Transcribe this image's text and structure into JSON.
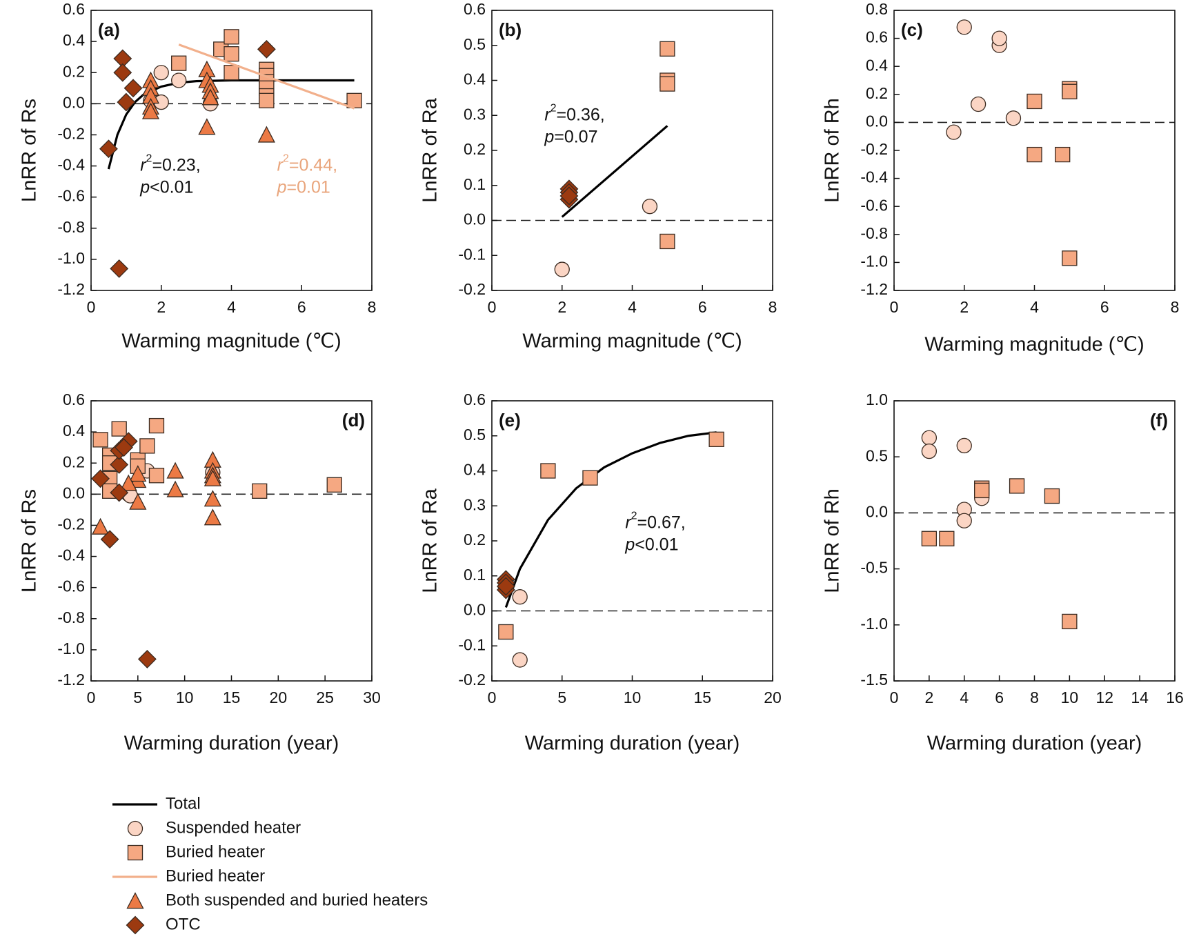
{
  "chart_data": [
    {
      "type": "scatter",
      "label": "(a)",
      "xlabel": "Warming magnitude (℃)",
      "ylabel": "LnRR of Rs",
      "xlim": [
        0,
        8
      ],
      "xticks": [
        0,
        2,
        4,
        6,
        8
      ],
      "ylim": [
        -1.2,
        0.6
      ],
      "yticks": [
        -1.2,
        {
          "value": -1.0,
          "label": "-1.0"
        },
        -0.8,
        -0.6,
        -0.4,
        -0.2,
        {
          "value": 0,
          "label": "0.0"
        },
        0.2,
        0.4,
        0.6
      ],
      "series": [
        {
          "name": "Total",
          "marker": "line",
          "color": "#000000",
          "x": [
            0.5,
            0.75,
            1,
            1.25,
            1.5,
            2,
            2.5,
            3,
            4,
            5,
            6,
            7.5
          ],
          "values": [
            -0.42,
            -0.2,
            -0.07,
            0.01,
            0.06,
            0.11,
            0.135,
            0.145,
            0.15,
            0.15,
            0.15,
            0.15
          ]
        },
        {
          "name": "Suspended heater",
          "marker": "circle",
          "color": "#fbd5c4",
          "x": [
            2.0,
            1.7,
            2.0,
            2.5,
            3.4
          ],
          "values": [
            0.2,
            0.02,
            0.01,
            0.15,
            0.0
          ]
        },
        {
          "name": "Buried heater",
          "marker": "square",
          "color": "#f5a882",
          "x": [
            2.5,
            3.7,
            4.0,
            4.0,
            4.0,
            5.0,
            5.0,
            5.0,
            5.0,
            5.0,
            5.0,
            7.5
          ],
          "values": [
            0.26,
            0.35,
            0.43,
            0.32,
            0.2,
            0.22,
            0.18,
            0.14,
            0.1,
            0.05,
            0.02,
            0.02
          ]
        },
        {
          "name": "Buried heater",
          "marker": "line",
          "color": "#f2b08c",
          "x": [
            2.5,
            7.5
          ],
          "values": [
            0.38,
            -0.03
          ]
        },
        {
          "name": "Both suspended and buried heaters",
          "marker": "triangle",
          "color": "#ec7a45",
          "x": [
            1.7,
            1.7,
            1.7,
            1.7,
            1.7,
            3.3,
            3.3,
            3.4,
            3.4,
            3.4,
            3.3,
            5.0
          ],
          "values": [
            0.15,
            0.1,
            0.05,
            -0.02,
            -0.05,
            0.22,
            0.15,
            0.12,
            0.08,
            0.04,
            -0.15,
            -0.2
          ]
        },
        {
          "name": "OTC",
          "marker": "diamond",
          "color": "#9c3a10",
          "x": [
            0.5,
            0.9,
            0.9,
            1.0,
            1.2,
            0.8,
            5.0
          ],
          "values": [
            -0.29,
            0.29,
            0.2,
            0.01,
            0.1,
            -1.06,
            0.35
          ]
        }
      ],
      "annotations": [
        {
          "r": "r",
          "sup": "2",
          "eq": "=0.23,",
          "p": "p",
          "ptext": "<0.01",
          "color": "#111111"
        },
        {
          "r": "r",
          "sup": "2",
          "eq": "=0.44,",
          "p": "p",
          "ptext": "=0.01",
          "color": "#e9a57c"
        }
      ]
    },
    {
      "type": "scatter",
      "label": "(b)",
      "xlabel": "Warming magnitude (℃)",
      "ylabel": "LnRR of Ra",
      "xlim": [
        0,
        8
      ],
      "xticks": [
        0,
        2,
        4,
        6,
        8
      ],
      "ylim": [
        -0.2,
        0.6
      ],
      "yticks": [
        -0.2,
        -0.1,
        {
          "value": 0,
          "label": "0.0"
        },
        0.1,
        0.2,
        0.3,
        0.4,
        0.5,
        0.6
      ],
      "series": [
        {
          "marker": "line",
          "color": "#000000",
          "x": [
            2,
            5
          ],
          "values": [
            0.01,
            0.27
          ]
        },
        {
          "marker": "circle",
          "color": "#fbd5c4",
          "x": [
            2.0,
            4.5
          ],
          "values": [
            -0.14,
            0.04
          ]
        },
        {
          "marker": "square",
          "color": "#f5a882",
          "x": [
            5.0,
            5.0,
            5.0,
            5.0
          ],
          "values": [
            0.49,
            0.4,
            0.39,
            -0.06
          ]
        },
        {
          "marker": "diamond",
          "color": "#9c3a10",
          "x": [
            2.2,
            2.2,
            2.2,
            2.2
          ],
          "values": [
            0.09,
            0.08,
            0.06,
            0.07
          ]
        }
      ],
      "annotations": [
        {
          "r": "r",
          "sup": "2",
          "eq": "=0.36,",
          "p": "p",
          "ptext": "=0.07",
          "color": "#111111"
        }
      ]
    },
    {
      "type": "scatter",
      "label": "(c)",
      "xlabel": "Warming magnitude (℃)",
      "ylabel": "LnRR of Rh",
      "xlim": [
        0,
        8
      ],
      "xticks": [
        0,
        2,
        4,
        6,
        8
      ],
      "ylim": [
        -1.2,
        0.8
      ],
      "yticks": [
        -1.2,
        {
          "value": -1.0,
          "label": "-1.0"
        },
        -0.8,
        -0.6,
        -0.4,
        -0.2,
        {
          "value": 0,
          "label": "0.0"
        },
        0.2,
        0.4,
        0.6,
        0.8
      ],
      "series": [
        {
          "marker": "circle",
          "color": "#fbd5c4",
          "x": [
            1.7,
            2.0,
            2.4,
            3.0,
            3.0,
            3.4
          ],
          "values": [
            -0.07,
            0.68,
            0.13,
            0.55,
            0.6,
            0.03
          ]
        },
        {
          "marker": "square",
          "color": "#f5a882",
          "x": [
            4.0,
            4.0,
            4.8,
            5.0,
            5.0,
            5.0
          ],
          "values": [
            0.15,
            -0.23,
            -0.23,
            0.24,
            0.22,
            -0.97
          ]
        }
      ],
      "annotations": []
    },
    {
      "type": "scatter",
      "label": "(d)",
      "xlabel": "Warming duration (year)",
      "ylabel": "LnRR of Rs",
      "xlim": [
        0,
        30
      ],
      "xticks": [
        0,
        5,
        10,
        15,
        20,
        25,
        30
      ],
      "ylim": [
        -1.2,
        0.6
      ],
      "yticks": [
        -1.2,
        {
          "value": -1.0,
          "label": "-1.0"
        },
        -0.8,
        -0.6,
        -0.4,
        -0.2,
        {
          "value": 0,
          "label": "0.0"
        },
        0.2,
        0.4,
        0.6
      ],
      "series": [
        {
          "marker": "circle",
          "color": "#fbd5c4",
          "x": [
            4.0,
            4.2,
            6.0,
            13.0
          ],
          "values": [
            0.0,
            -0.01,
            0.15,
            0.14
          ]
        },
        {
          "marker": "square",
          "color": "#f5a882",
          "x": [
            1,
            2,
            2,
            2,
            2,
            3,
            5,
            5,
            6,
            7,
            7,
            18,
            26
          ],
          "values": [
            0.35,
            0.25,
            0.2,
            0.1,
            0.02,
            0.42,
            0.22,
            0.18,
            0.31,
            0.44,
            0.12,
            0.02,
            0.06
          ]
        },
        {
          "marker": "triangle",
          "color": "#ec7a45",
          "x": [
            1,
            5,
            5,
            5,
            9,
            9,
            13,
            13,
            13,
            13,
            13,
            13,
            4
          ],
          "values": [
            -0.21,
            0.09,
            0.13,
            -0.05,
            0.15,
            0.03,
            0.22,
            0.15,
            0.12,
            0.1,
            -0.03,
            -0.15,
            0.07
          ]
        },
        {
          "marker": "diamond",
          "color": "#9c3a10",
          "x": [
            1,
            2,
            3,
            3,
            3,
            4,
            6,
            3.5
          ],
          "values": [
            0.1,
            -0.29,
            0.19,
            0.28,
            0.01,
            0.34,
            -1.06,
            0.3
          ]
        }
      ],
      "annotations": []
    },
    {
      "type": "scatter",
      "label": "(e)",
      "xlabel": "Warming duration (year)",
      "ylabel": "LnRR of Ra",
      "xlim": [
        0,
        20
      ],
      "xticks": [
        0,
        5,
        10,
        15,
        20
      ],
      "ylim": [
        -0.2,
        0.6
      ],
      "yticks": [
        -0.2,
        -0.1,
        {
          "value": 0,
          "label": "0.0"
        },
        0.1,
        0.2,
        0.3,
        0.4,
        0.5,
        0.6
      ],
      "series": [
        {
          "marker": "line",
          "color": "#000000",
          "x": [
            1,
            2,
            4,
            6,
            8,
            10,
            12,
            14,
            16
          ],
          "values": [
            0.01,
            0.12,
            0.26,
            0.35,
            0.41,
            0.45,
            0.48,
            0.5,
            0.51
          ]
        },
        {
          "marker": "circle",
          "color": "#fbd5c4",
          "x": [
            2,
            2
          ],
          "values": [
            0.04,
            -0.14
          ]
        },
        {
          "marker": "square",
          "color": "#f5a882",
          "x": [
            1,
            4,
            7,
            16
          ],
          "values": [
            -0.06,
            0.4,
            0.38,
            0.49
          ]
        },
        {
          "marker": "diamond",
          "color": "#9c3a10",
          "x": [
            1,
            1,
            1,
            1
          ],
          "values": [
            0.09,
            0.08,
            0.06,
            0.07
          ]
        }
      ],
      "annotations": [
        {
          "r": "r",
          "sup": "2",
          "eq": "=0.67,",
          "p": "p",
          "ptext": "<0.01",
          "color": "#111111"
        }
      ]
    },
    {
      "type": "scatter",
      "label": "(f)",
      "xlabel": "Warming duration (year)",
      "ylabel": "LnRR of Rh",
      "xlim": [
        0,
        16
      ],
      "xticks": [
        0,
        2,
        4,
        6,
        8,
        10,
        12,
        14,
        16
      ],
      "ylim": [
        -1.5,
        1.0
      ],
      "yticks": [
        -1.5,
        {
          "value": -1.0,
          "label": "-1.0"
        },
        -0.5,
        {
          "value": 0,
          "label": "0.0"
        },
        0.5,
        {
          "value": 1.0,
          "label": "1.0"
        }
      ],
      "series": [
        {
          "marker": "circle",
          "color": "#fbd5c4",
          "x": [
            2,
            2,
            4,
            4,
            4,
            5
          ],
          "values": [
            0.67,
            0.55,
            0.6,
            0.03,
            -0.07,
            0.13
          ]
        },
        {
          "marker": "square",
          "color": "#f5a882",
          "x": [
            2,
            3,
            5,
            5,
            7,
            9,
            10
          ],
          "values": [
            -0.23,
            -0.23,
            0.22,
            0.2,
            0.24,
            0.15,
            -0.97
          ]
        }
      ],
      "annotations": []
    }
  ]
}
